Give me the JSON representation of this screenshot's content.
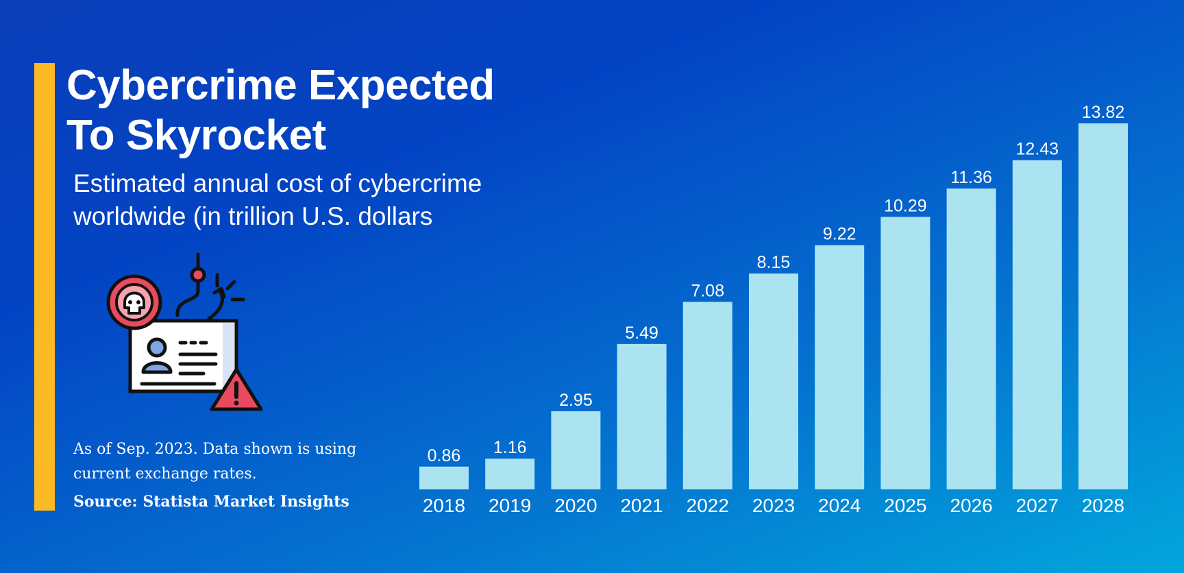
{
  "header": {
    "title": "Cybercrime Expected To Skyrocket",
    "subtitle": "Estimated annual cost of cybercrime worldwide (in trillion U.S. dollars"
  },
  "footer": {
    "note": "As of Sep. 2023. Data shown is using current exchange rates.",
    "source": "Source: Statista Market Insights"
  },
  "colors": {
    "accent": "#fbb923",
    "bar": "#abe4f0",
    "background_start": "#0a3db8",
    "background_end": "#02a6dc"
  },
  "illustration": {
    "icon": "phishing-id-card-icon"
  },
  "chart_data": {
    "type": "bar",
    "title": "Cybercrime Expected To Skyrocket",
    "subtitle": "Estimated annual cost of cybercrime worldwide (in trillion U.S. dollars",
    "categories": [
      "2018",
      "2019",
      "2020",
      "2021",
      "2022",
      "2023",
      "2024",
      "2025",
      "2026",
      "2027",
      "2028"
    ],
    "values": [
      0.86,
      1.16,
      2.95,
      5.49,
      7.08,
      8.15,
      9.22,
      10.29,
      11.36,
      12.43,
      13.82
    ],
    "value_labels": [
      "0.86",
      "1.16",
      "2.95",
      "5.49",
      "7.08",
      "8.15",
      "9.22",
      "10.29",
      "11.36",
      "12.43",
      "13.82"
    ],
    "ylim": [
      0,
      13.82
    ],
    "grid": false,
    "legend": "none",
    "data_labels": true
  }
}
